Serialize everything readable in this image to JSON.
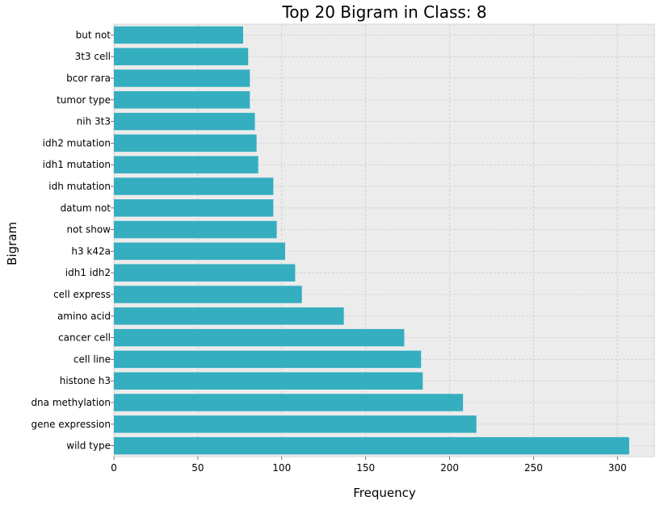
{
  "chart_data": {
    "type": "bar",
    "orientation": "horizontal",
    "title": "Top 20 Bigram in Class: 8",
    "xlabel": "Frequency",
    "ylabel": "Bigram",
    "xlim": [
      0,
      322
    ],
    "xticks": [
      0,
      50,
      100,
      150,
      200,
      250,
      300
    ],
    "grid": true,
    "bar_color": "#35aec0",
    "background_color": "#ececec",
    "categories": [
      "wild type",
      "gene expression",
      "dna methylation",
      "histone h3",
      "cell line",
      "cancer cell",
      "amino acid",
      "cell express",
      "idh1 idh2",
      "h3 k42a",
      "not show",
      "datum not",
      "idh mutation",
      "idh1 mutation",
      "idh2 mutation",
      "nih 3t3",
      "tumor type",
      "bcor rara",
      "3t3 cell",
      "but not"
    ],
    "values": [
      307,
      216,
      208,
      184,
      183,
      173,
      137,
      112,
      108,
      102,
      97,
      95,
      95,
      86,
      85,
      84,
      81,
      81,
      80,
      77
    ]
  }
}
